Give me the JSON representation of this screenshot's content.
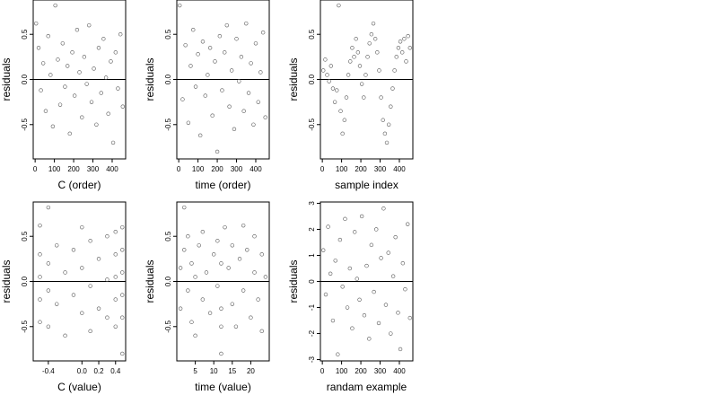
{
  "chart_data": [
    {
      "type": "scatter",
      "xlabel": "C (order)",
      "ylabel": "residuals",
      "xlim": [
        -10,
        470
      ],
      "ylim": [
        -0.88,
        0.88
      ],
      "xticks": [
        0,
        100,
        200,
        300,
        400
      ],
      "yticks": [
        -0.5,
        0.0,
        0.5
      ],
      "ytick_labels": [
        "-0.5",
        "0.0",
        "0.5"
      ],
      "reference_line": 0,
      "points": [
        [
          5,
          0.62
        ],
        [
          18,
          0.35
        ],
        [
          30,
          -0.12
        ],
        [
          42,
          0.18
        ],
        [
          55,
          -0.35
        ],
        [
          68,
          0.48
        ],
        [
          80,
          0.05
        ],
        [
          92,
          -0.52
        ],
        [
          105,
          0.82
        ],
        [
          118,
          0.22
        ],
        [
          130,
          -0.28
        ],
        [
          143,
          0.4
        ],
        [
          155,
          -0.08
        ],
        [
          168,
          0.15
        ],
        [
          180,
          -0.6
        ],
        [
          193,
          0.3
        ],
        [
          205,
          -0.18
        ],
        [
          218,
          0.55
        ],
        [
          230,
          0.08
        ],
        [
          243,
          -0.42
        ],
        [
          255,
          0.25
        ],
        [
          268,
          -0.05
        ],
        [
          280,
          0.6
        ],
        [
          293,
          -0.25
        ],
        [
          305,
          0.12
        ],
        [
          318,
          -0.5
        ],
        [
          330,
          0.35
        ],
        [
          343,
          -0.15
        ],
        [
          355,
          0.45
        ],
        [
          368,
          0.02
        ],
        [
          380,
          -0.38
        ],
        [
          393,
          0.2
        ],
        [
          405,
          -0.7
        ],
        [
          418,
          0.3
        ],
        [
          430,
          -0.1
        ],
        [
          443,
          0.5
        ],
        [
          455,
          -0.3
        ]
      ]
    },
    {
      "type": "scatter",
      "xlabel": "time (order)",
      "ylabel": "residuals",
      "xlim": [
        -10,
        470
      ],
      "ylim": [
        -0.88,
        0.88
      ],
      "xticks": [
        0,
        100,
        200,
        300,
        400
      ],
      "yticks": [
        -0.5,
        0.0,
        0.5
      ],
      "ytick_labels": [
        "-0.5",
        "0.0",
        "0.5"
      ],
      "reference_line": 0,
      "points": [
        [
          5,
          0.82
        ],
        [
          20,
          -0.22
        ],
        [
          35,
          0.38
        ],
        [
          50,
          -0.48
        ],
        [
          62,
          0.15
        ],
        [
          75,
          0.55
        ],
        [
          88,
          -0.08
        ],
        [
          100,
          0.28
        ],
        [
          112,
          -0.62
        ],
        [
          125,
          0.42
        ],
        [
          138,
          -0.18
        ],
        [
          150,
          0.05
        ],
        [
          163,
          0.35
        ],
        [
          175,
          -0.4
        ],
        [
          188,
          0.2
        ],
        [
          200,
          -0.8
        ],
        [
          213,
          0.48
        ],
        [
          225,
          -0.12
        ],
        [
          238,
          0.3
        ],
        [
          250,
          0.6
        ],
        [
          263,
          -0.3
        ],
        [
          275,
          0.1
        ],
        [
          288,
          -0.55
        ],
        [
          300,
          0.45
        ],
        [
          313,
          -0.02
        ],
        [
          325,
          0.25
        ],
        [
          338,
          -0.35
        ],
        [
          350,
          0.62
        ],
        [
          363,
          -0.15
        ],
        [
          375,
          0.18
        ],
        [
          388,
          -0.5
        ],
        [
          400,
          0.4
        ],
        [
          413,
          -0.25
        ],
        [
          425,
          0.08
        ],
        [
          438,
          0.52
        ],
        [
          450,
          -0.42
        ]
      ]
    },
    {
      "type": "scatter",
      "xlabel": "sample index",
      "ylabel": "residuals",
      "xlim": [
        -10,
        470
      ],
      "ylim": [
        -0.88,
        0.88
      ],
      "xticks": [
        0,
        100,
        200,
        300,
        400
      ],
      "yticks": [
        -0.5,
        0.0,
        0.5
      ],
      "ytick_labels": [
        "-0.5",
        "0.0",
        "0.5"
      ],
      "reference_line": 0,
      "points": [
        [
          5,
          0.1
        ],
        [
          15,
          0.22
        ],
        [
          25,
          0.05
        ],
        [
          35,
          -0.02
        ],
        [
          45,
          0.15
        ],
        [
          55,
          -0.1
        ],
        [
          65,
          -0.25
        ],
        [
          75,
          -0.12
        ],
        [
          85,
          0.82
        ],
        [
          95,
          -0.35
        ],
        [
          105,
          -0.6
        ],
        [
          115,
          -0.45
        ],
        [
          125,
          -0.2
        ],
        [
          135,
          0.05
        ],
        [
          145,
          0.2
        ],
        [
          155,
          0.35
        ],
        [
          165,
          0.25
        ],
        [
          175,
          0.45
        ],
        [
          185,
          0.3
        ],
        [
          195,
          0.15
        ],
        [
          205,
          -0.05
        ],
        [
          215,
          -0.2
        ],
        [
          225,
          0.05
        ],
        [
          235,
          0.25
        ],
        [
          245,
          0.4
        ],
        [
          255,
          0.5
        ],
        [
          265,
          0.62
        ],
        [
          275,
          0.45
        ],
        [
          285,
          0.3
        ],
        [
          295,
          0.1
        ],
        [
          305,
          -0.2
        ],
        [
          315,
          -0.45
        ],
        [
          325,
          -0.6
        ],
        [
          335,
          -0.7
        ],
        [
          345,
          -0.5
        ],
        [
          355,
          -0.3
        ],
        [
          365,
          -0.1
        ],
        [
          375,
          0.1
        ],
        [
          385,
          0.25
        ],
        [
          395,
          0.35
        ],
        [
          405,
          0.42
        ],
        [
          415,
          0.3
        ],
        [
          425,
          0.45
        ],
        [
          435,
          0.2
        ],
        [
          445,
          0.48
        ],
        [
          455,
          0.35
        ]
      ]
    },
    {
      "type": "scatter",
      "xlabel": "C (value)",
      "ylabel": "residuals",
      "xlim": [
        -0.58,
        0.52
      ],
      "ylim": [
        -0.88,
        0.88
      ],
      "xticks": [
        -0.4,
        0.0,
        0.2,
        0.4
      ],
      "xtick_labels": [
        "-0.4",
        "0.0",
        "0.2",
        "0.4"
      ],
      "yticks": [
        -0.5,
        0.0,
        0.5
      ],
      "ytick_labels": [
        "-0.5",
        "0.0",
        "0.5"
      ],
      "reference_line": 0,
      "points": [
        [
          -0.5,
          0.62
        ],
        [
          -0.5,
          0.3
        ],
        [
          -0.5,
          0.05
        ],
        [
          -0.5,
          -0.2
        ],
        [
          -0.5,
          -0.45
        ],
        [
          -0.4,
          0.82
        ],
        [
          -0.4,
          0.2
        ],
        [
          -0.4,
          -0.1
        ],
        [
          -0.4,
          -0.5
        ],
        [
          -0.3,
          0.4
        ],
        [
          -0.3,
          -0.25
        ],
        [
          -0.2,
          0.1
        ],
        [
          -0.2,
          -0.6
        ],
        [
          -0.1,
          0.35
        ],
        [
          -0.1,
          -0.15
        ],
        [
          0.0,
          0.6
        ],
        [
          0.0,
          0.15
        ],
        [
          0.0,
          -0.35
        ],
        [
          0.1,
          0.45
        ],
        [
          0.1,
          -0.05
        ],
        [
          0.1,
          -0.55
        ],
        [
          0.2,
          0.25
        ],
        [
          0.2,
          -0.3
        ],
        [
          0.3,
          0.5
        ],
        [
          0.3,
          0.02
        ],
        [
          0.3,
          -0.4
        ],
        [
          0.4,
          0.55
        ],
        [
          0.4,
          0.3
        ],
        [
          0.4,
          0.05
        ],
        [
          0.4,
          -0.2
        ],
        [
          0.4,
          -0.5
        ],
        [
          0.48,
          0.6
        ],
        [
          0.48,
          0.35
        ],
        [
          0.48,
          0.1
        ],
        [
          0.48,
          -0.15
        ],
        [
          0.48,
          -0.4
        ],
        [
          0.48,
          -0.8
        ]
      ]
    },
    {
      "type": "scatter",
      "xlabel": "time (value)",
      "ylabel": "residuals",
      "xlim": [
        0,
        25
      ],
      "ylim": [
        -0.88,
        0.88
      ],
      "xticks": [
        5,
        10,
        15,
        20
      ],
      "yticks": [
        -0.5,
        0.0,
        0.5
      ],
      "ytick_labels": [
        "-0.5",
        "0.0",
        "0.5"
      ],
      "reference_line": 0,
      "points": [
        [
          1,
          0.15
        ],
        [
          1,
          -0.3
        ],
        [
          2,
          0.82
        ],
        [
          2,
          0.35
        ],
        [
          3,
          -0.1
        ],
        [
          3,
          0.5
        ],
        [
          4,
          -0.45
        ],
        [
          4,
          0.2
        ],
        [
          5,
          0.05
        ],
        [
          5,
          -0.6
        ],
        [
          6,
          0.4
        ],
        [
          7,
          -0.2
        ],
        [
          7,
          0.55
        ],
        [
          8,
          0.1
        ],
        [
          9,
          -0.35
        ],
        [
          10,
          0.3
        ],
        [
          11,
          -0.05
        ],
        [
          11,
          0.45
        ],
        [
          12,
          0.2
        ],
        [
          12,
          -0.3
        ],
        [
          12,
          -0.5
        ],
        [
          12,
          -0.8
        ],
        [
          13,
          0.6
        ],
        [
          14,
          0.15
        ],
        [
          15,
          -0.25
        ],
        [
          15,
          0.4
        ],
        [
          16,
          -0.5
        ],
        [
          17,
          0.25
        ],
        [
          18,
          0.62
        ],
        [
          18,
          -0.1
        ],
        [
          19,
          0.35
        ],
        [
          20,
          -0.4
        ],
        [
          21,
          0.1
        ],
        [
          21,
          0.5
        ],
        [
          22,
          -0.2
        ],
        [
          23,
          0.3
        ],
        [
          23,
          -0.55
        ],
        [
          24,
          0.05
        ]
      ]
    },
    {
      "type": "scatter",
      "xlabel": "randam example",
      "ylabel": "residuals",
      "xlim": [
        -10,
        470
      ],
      "ylim": [
        -3.05,
        3.05
      ],
      "xticks": [
        0,
        100,
        200,
        300,
        400
      ],
      "yticks": [
        -3,
        -2,
        -1,
        0,
        1,
        2,
        3
      ],
      "reference_line": 0,
      "points": [
        [
          5,
          1.2
        ],
        [
          18,
          -0.5
        ],
        [
          30,
          2.1
        ],
        [
          42,
          0.3
        ],
        [
          55,
          -1.5
        ],
        [
          68,
          0.8
        ],
        [
          80,
          -2.8
        ],
        [
          92,
          1.6
        ],
        [
          105,
          -0.2
        ],
        [
          118,
          2.4
        ],
        [
          130,
          -1.0
        ],
        [
          143,
          0.5
        ],
        [
          155,
          -1.8
        ],
        [
          168,
          1.9
        ],
        [
          180,
          0.1
        ],
        [
          193,
          -0.7
        ],
        [
          205,
          2.5
        ],
        [
          218,
          -1.3
        ],
        [
          230,
          0.6
        ],
        [
          243,
          -2.2
        ],
        [
          255,
          1.4
        ],
        [
          268,
          -0.4
        ],
        [
          280,
          2.0
        ],
        [
          293,
          -1.6
        ],
        [
          305,
          0.9
        ],
        [
          318,
          2.8
        ],
        [
          330,
          -0.9
        ],
        [
          343,
          1.1
        ],
        [
          355,
          -2.0
        ],
        [
          368,
          0.2
        ],
        [
          380,
          1.7
        ],
        [
          393,
          -1.2
        ],
        [
          405,
          -2.6
        ],
        [
          418,
          0.7
        ],
        [
          430,
          -0.3
        ],
        [
          443,
          2.2
        ],
        [
          455,
          -1.4
        ]
      ]
    }
  ]
}
